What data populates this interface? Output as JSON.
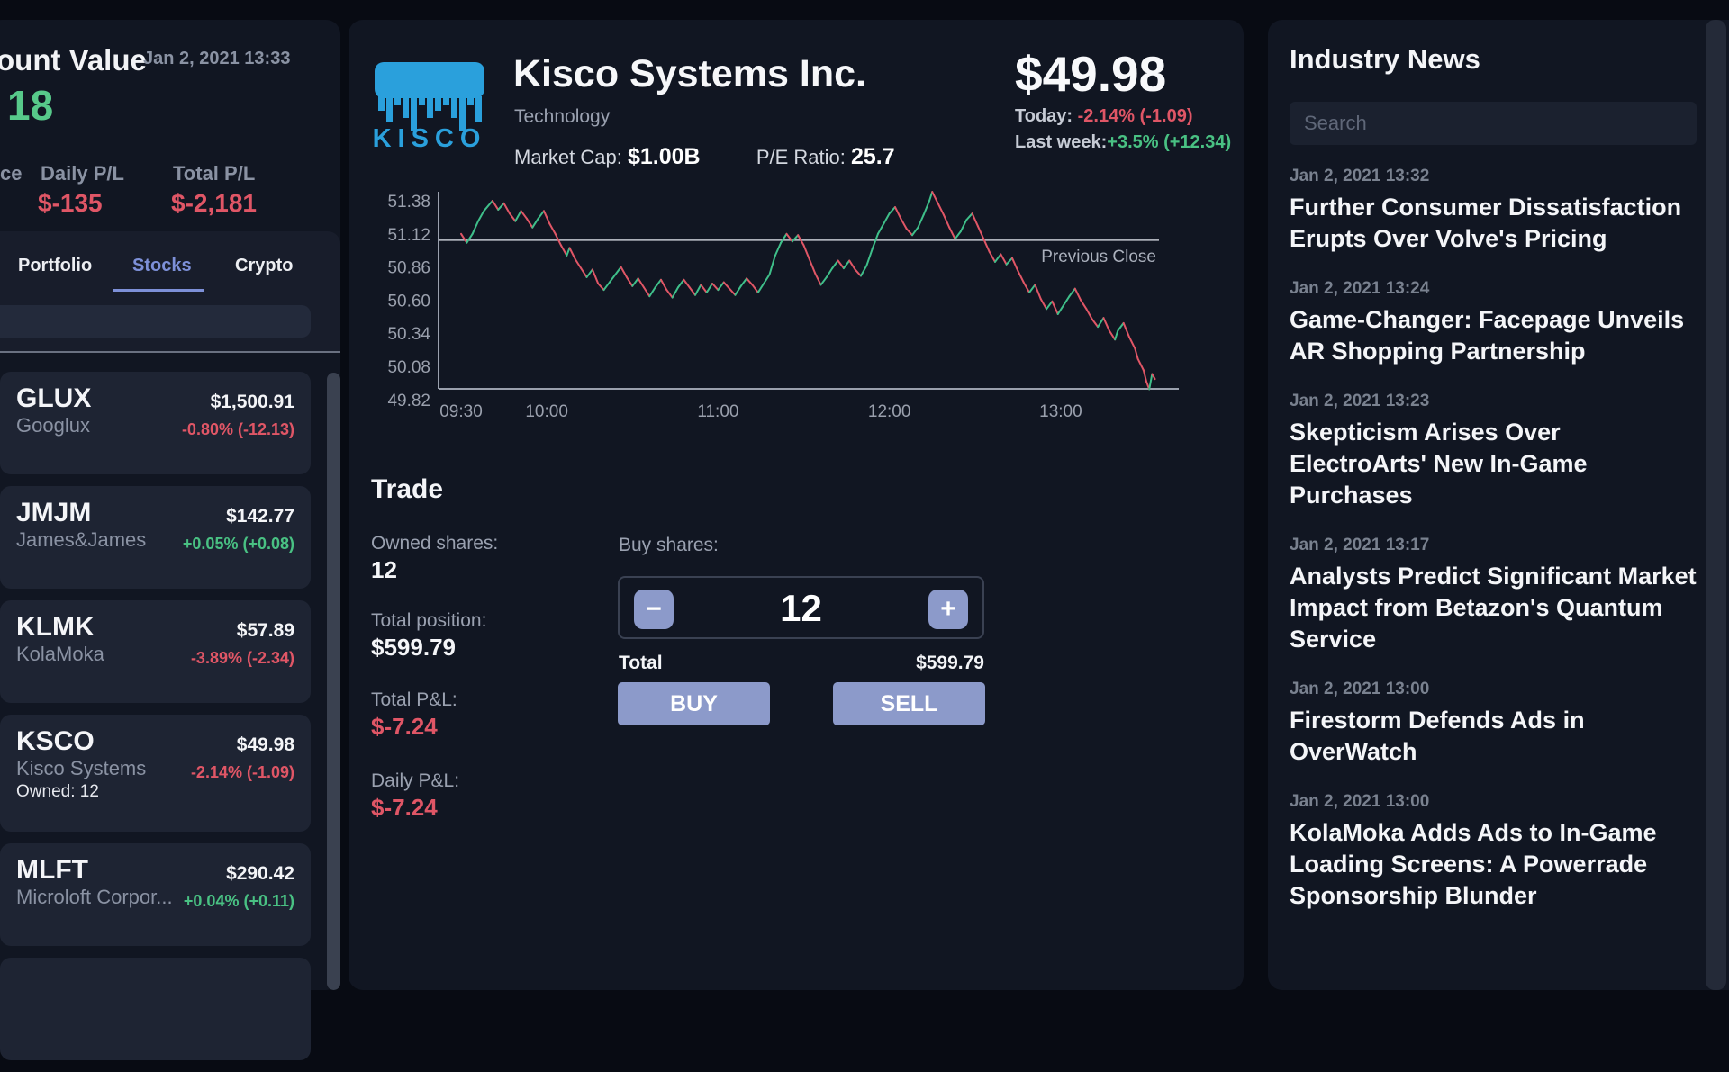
{
  "account": {
    "title_clipped": "ount Value",
    "timestamp": "Jan 2, 2021 13:33",
    "value_clipped": "18",
    "col1_label_clipped": "ce",
    "daily_pl_label": "Daily P/L",
    "daily_pl": "$-135",
    "total_pl_label": "Total P/L",
    "total_pl": "$-2,181"
  },
  "tabs": {
    "portfolio": "Portfolio",
    "stocks": "Stocks",
    "crypto": "Crypto",
    "active": "Stocks"
  },
  "watchlist": [
    {
      "ticker": "GLUX",
      "name": "Googlux",
      "price": "$1,500.91",
      "change": "-0.80% (-12.13)",
      "direction": "down"
    },
    {
      "ticker": "JMJM",
      "name": "James&James",
      "price": "$142.77",
      "change": "+0.05% (+0.08)",
      "direction": "up"
    },
    {
      "ticker": "KLMK",
      "name": "KolaMoka",
      "price": "$57.89",
      "change": "-3.89% (-2.34)",
      "direction": "down"
    },
    {
      "ticker": "KSCO",
      "name": "Kisco Systems",
      "owned": "Owned: 12",
      "price": "$49.98",
      "change": "-2.14% (-1.09)",
      "direction": "down"
    },
    {
      "ticker": "MLFT",
      "name": "Microloft Corpor...",
      "price": "$290.42",
      "change": "+0.04% (+0.11)",
      "direction": "up"
    }
  ],
  "stock": {
    "logo_text": "KISCO",
    "name": "Kisco Systems Inc.",
    "sector": "Technology",
    "market_cap_label": "Market Cap:",
    "market_cap": "$1.00B",
    "pe_label": "P/E Ratio:",
    "pe": "25.7",
    "price": "$49.98",
    "today_label": "Today:",
    "today_change": "-2.14% (-1.09)",
    "week_label": "Last week:",
    "week_change": "+3.5% (+12.34)",
    "logo_color": "#2aa0dc"
  },
  "chart_data": {
    "type": "line",
    "title": "KSCO intraday price",
    "y_ticks": [
      51.38,
      51.12,
      50.86,
      50.6,
      50.34,
      50.08,
      49.82
    ],
    "x_ticks": [
      {
        "t": 0,
        "label": "09:30"
      },
      {
        "t": 30,
        "label": "10:00"
      },
      {
        "t": 90,
        "label": "11:00"
      },
      {
        "t": 150,
        "label": "12:00"
      },
      {
        "t": 210,
        "label": "13:00"
      }
    ],
    "ylim": [
      49.82,
      51.38
    ],
    "xlim_minutes": [
      0,
      243
    ],
    "previous_close": 51.07,
    "previous_close_label": "Previous Close",
    "up_color": "#3fbf8a",
    "down_color": "#e05666",
    "grid": false,
    "series": [
      {
        "name": "KSCO",
        "points": [
          [
            0,
            51.12
          ],
          [
            2,
            51.05
          ],
          [
            4,
            51.12
          ],
          [
            6,
            51.22
          ],
          [
            8,
            51.3
          ],
          [
            11,
            51.38
          ],
          [
            13,
            51.31
          ],
          [
            15,
            51.36
          ],
          [
            17,
            51.28
          ],
          [
            19,
            51.22
          ],
          [
            21,
            51.3
          ],
          [
            23,
            51.24
          ],
          [
            25,
            51.17
          ],
          [
            27,
            51.24
          ],
          [
            29,
            51.3
          ],
          [
            31,
            51.2
          ],
          [
            33,
            51.12
          ],
          [
            35,
            51.03
          ],
          [
            37,
            50.95
          ],
          [
            38,
            51.01
          ],
          [
            40,
            50.92
          ],
          [
            42,
            50.85
          ],
          [
            44,
            50.78
          ],
          [
            46,
            50.84
          ],
          [
            48,
            50.73
          ],
          [
            50,
            50.68
          ],
          [
            52,
            50.74
          ],
          [
            54,
            50.8
          ],
          [
            56,
            50.86
          ],
          [
            58,
            50.78
          ],
          [
            60,
            50.71
          ],
          [
            62,
            50.77
          ],
          [
            64,
            50.7
          ],
          [
            66,
            50.63
          ],
          [
            68,
            50.7
          ],
          [
            70,
            50.76
          ],
          [
            72,
            50.68
          ],
          [
            74,
            50.62
          ],
          [
            76,
            50.7
          ],
          [
            78,
            50.76
          ],
          [
            80,
            50.7
          ],
          [
            82,
            50.64
          ],
          [
            84,
            50.72
          ],
          [
            86,
            50.66
          ],
          [
            88,
            50.73
          ],
          [
            90,
            50.68
          ],
          [
            92,
            50.74
          ],
          [
            94,
            50.69
          ],
          [
            96,
            50.64
          ],
          [
            98,
            50.71
          ],
          [
            100,
            50.77
          ],
          [
            102,
            50.72
          ],
          [
            104,
            50.66
          ],
          [
            106,
            50.73
          ],
          [
            108,
            50.8
          ],
          [
            110,
            50.95
          ],
          [
            112,
            51.05
          ],
          [
            114,
            51.12
          ],
          [
            116,
            51.06
          ],
          [
            118,
            51.11
          ],
          [
            120,
            51.03
          ],
          [
            122,
            50.92
          ],
          [
            124,
            50.81
          ],
          [
            126,
            50.72
          ],
          [
            128,
            50.78
          ],
          [
            130,
            50.85
          ],
          [
            132,
            50.91
          ],
          [
            134,
            50.85
          ],
          [
            136,
            50.91
          ],
          [
            138,
            50.84
          ],
          [
            140,
            50.79
          ],
          [
            142,
            50.87
          ],
          [
            144,
            51.0
          ],
          [
            146,
            51.12
          ],
          [
            148,
            51.2
          ],
          [
            150,
            51.28
          ],
          [
            152,
            51.33
          ],
          [
            154,
            51.24
          ],
          [
            156,
            51.16
          ],
          [
            158,
            51.11
          ],
          [
            160,
            51.17
          ],
          [
            162,
            51.27
          ],
          [
            164,
            51.38
          ],
          [
            165,
            51.45
          ],
          [
            167,
            51.36
          ],
          [
            169,
            51.27
          ],
          [
            171,
            51.17
          ],
          [
            173,
            51.08
          ],
          [
            175,
            51.14
          ],
          [
            177,
            51.23
          ],
          [
            179,
            51.28
          ],
          [
            181,
            51.18
          ],
          [
            183,
            51.08
          ],
          [
            185,
            50.98
          ],
          [
            187,
            50.9
          ],
          [
            189,
            50.96
          ],
          [
            191,
            50.88
          ],
          [
            193,
            50.93
          ],
          [
            195,
            50.83
          ],
          [
            197,
            50.74
          ],
          [
            199,
            50.66
          ],
          [
            201,
            50.72
          ],
          [
            203,
            50.61
          ],
          [
            205,
            50.53
          ],
          [
            207,
            50.59
          ],
          [
            209,
            50.49
          ],
          [
            211,
            50.56
          ],
          [
            213,
            50.63
          ],
          [
            215,
            50.69
          ],
          [
            217,
            50.6
          ],
          [
            219,
            50.53
          ],
          [
            221,
            50.45
          ],
          [
            223,
            50.39
          ],
          [
            225,
            50.46
          ],
          [
            227,
            50.36
          ],
          [
            229,
            50.29
          ],
          [
            230,
            50.36
          ],
          [
            232,
            50.42
          ],
          [
            234,
            50.31
          ],
          [
            236,
            50.22
          ],
          [
            237,
            50.14
          ],
          [
            239,
            50.05
          ],
          [
            240,
            49.96
          ],
          [
            241,
            49.9
          ],
          [
            242,
            50.02
          ],
          [
            243,
            49.98
          ]
        ]
      }
    ]
  },
  "trade": {
    "heading": "Trade",
    "owned_label": "Owned shares:",
    "owned": "12",
    "position_label": "Total position:",
    "position": "$599.79",
    "total_pl_label": "Total P&L:",
    "total_pl": "$-7.24",
    "daily_pl_label": "Daily P&L:",
    "daily_pl": "$-7.24",
    "buy_shares_label": "Buy shares:",
    "quantity": "12",
    "minus_label": "−",
    "plus_label": "+",
    "total_label": "Total",
    "total": "$599.79",
    "buy_label": "BUY",
    "sell_label": "SELL"
  },
  "news": {
    "title": "Industry News",
    "search_placeholder": "Search",
    "items": [
      {
        "date": "Jan 2, 2021 13:32",
        "headline": "Further Consumer Dissatisfaction Erupts Over Volve's Pricing"
      },
      {
        "date": "Jan 2, 2021 13:24",
        "headline": "Game-Changer: Facepage Unveils AR Shopping Partnership"
      },
      {
        "date": "Jan 2, 2021 13:23",
        "headline": "Skepticism Arises Over ElectroArts' New In-Game Purchases"
      },
      {
        "date": "Jan 2, 2021 13:17",
        "headline": "Analysts Predict Significant Market Impact from Betazon's Quantum Service"
      },
      {
        "date": "Jan 2, 2021 13:00",
        "headline": "Firestorm Defends Ads in OverWatch"
      },
      {
        "date": "Jan 2, 2021 13:00",
        "headline": "KolaMoka Adds Ads to In-Game Loading Screens: A Powerrade Sponsorship Blunder"
      }
    ]
  }
}
